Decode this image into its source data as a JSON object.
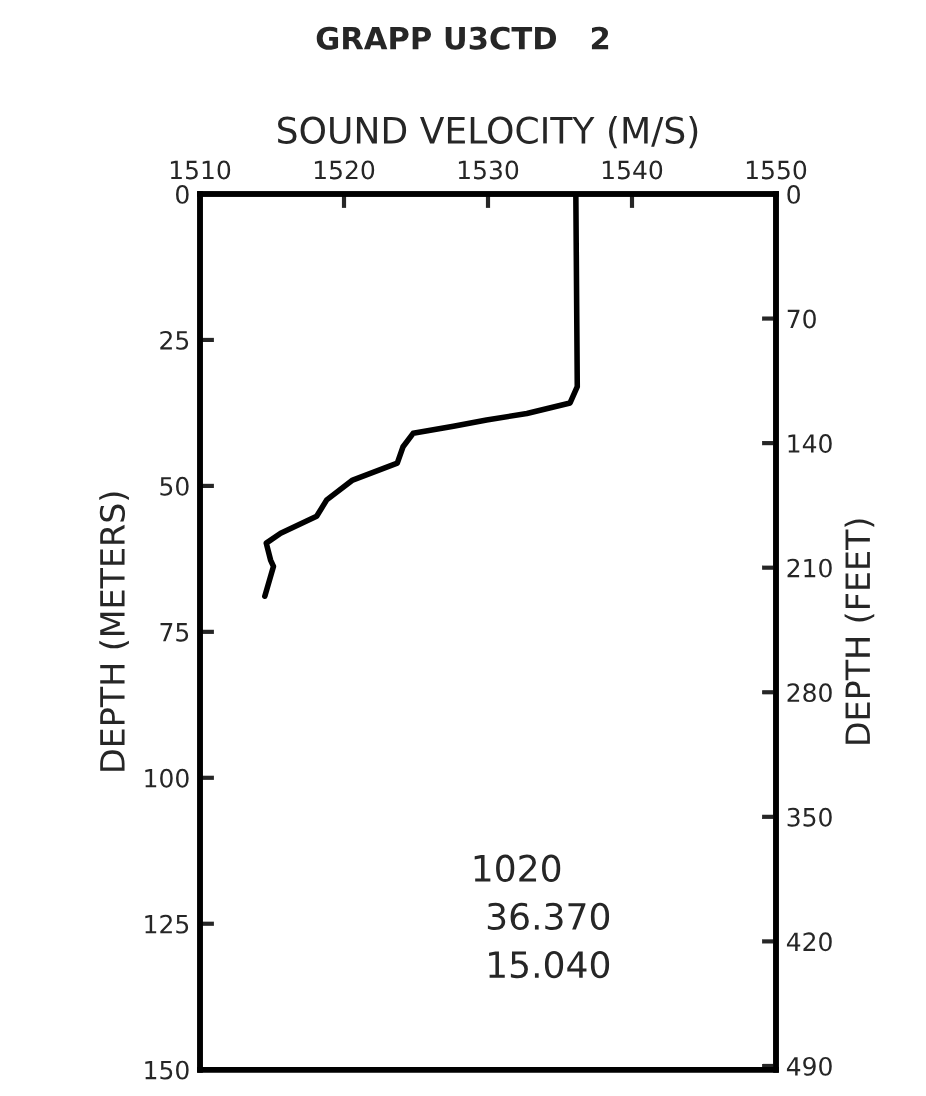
{
  "chart_data": {
    "type": "line",
    "title": "GRAPP U3CTD   2",
    "xlabel": "SOUND VELOCITY (M/S)",
    "ylabel": "DEPTH (METERS)",
    "y2label": "DEPTH (FEET)",
    "series": [
      {
        "color": "#000000",
        "x": [
          1536.1,
          1536.2,
          1535.7,
          1532.7,
          1529.9,
          1527.6,
          1524.8,
          1524.1,
          1523.7,
          1520.6,
          1518.8,
          1518.1,
          1515.6,
          1514.6,
          1514.9,
          1515.1,
          1514.5
        ],
        "values": [
          0,
          33.0,
          35.8,
          37.6,
          38.7,
          39.8,
          41.0,
          43.3,
          46.1,
          49.0,
          52.4,
          55.2,
          58.1,
          59.8,
          62.7,
          63.8,
          68.9
        ]
      }
    ],
    "xlim": [
      1510,
      1550
    ],
    "xticks": [
      1510,
      1520,
      1530,
      1540,
      1550
    ],
    "ylim": [
      150,
      0
    ],
    "yticks": [
      0,
      25,
      50,
      75,
      100,
      125,
      150
    ],
    "y2lim": [
      492.1,
      0
    ],
    "y2ticks": [
      0,
      70,
      140,
      210,
      280,
      350,
      420,
      490
    ],
    "annotations": [
      "1020",
      "36.370",
      "15.040"
    ],
    "grid": false,
    "legend": false,
    "marker": "none",
    "line_style": "solid"
  }
}
